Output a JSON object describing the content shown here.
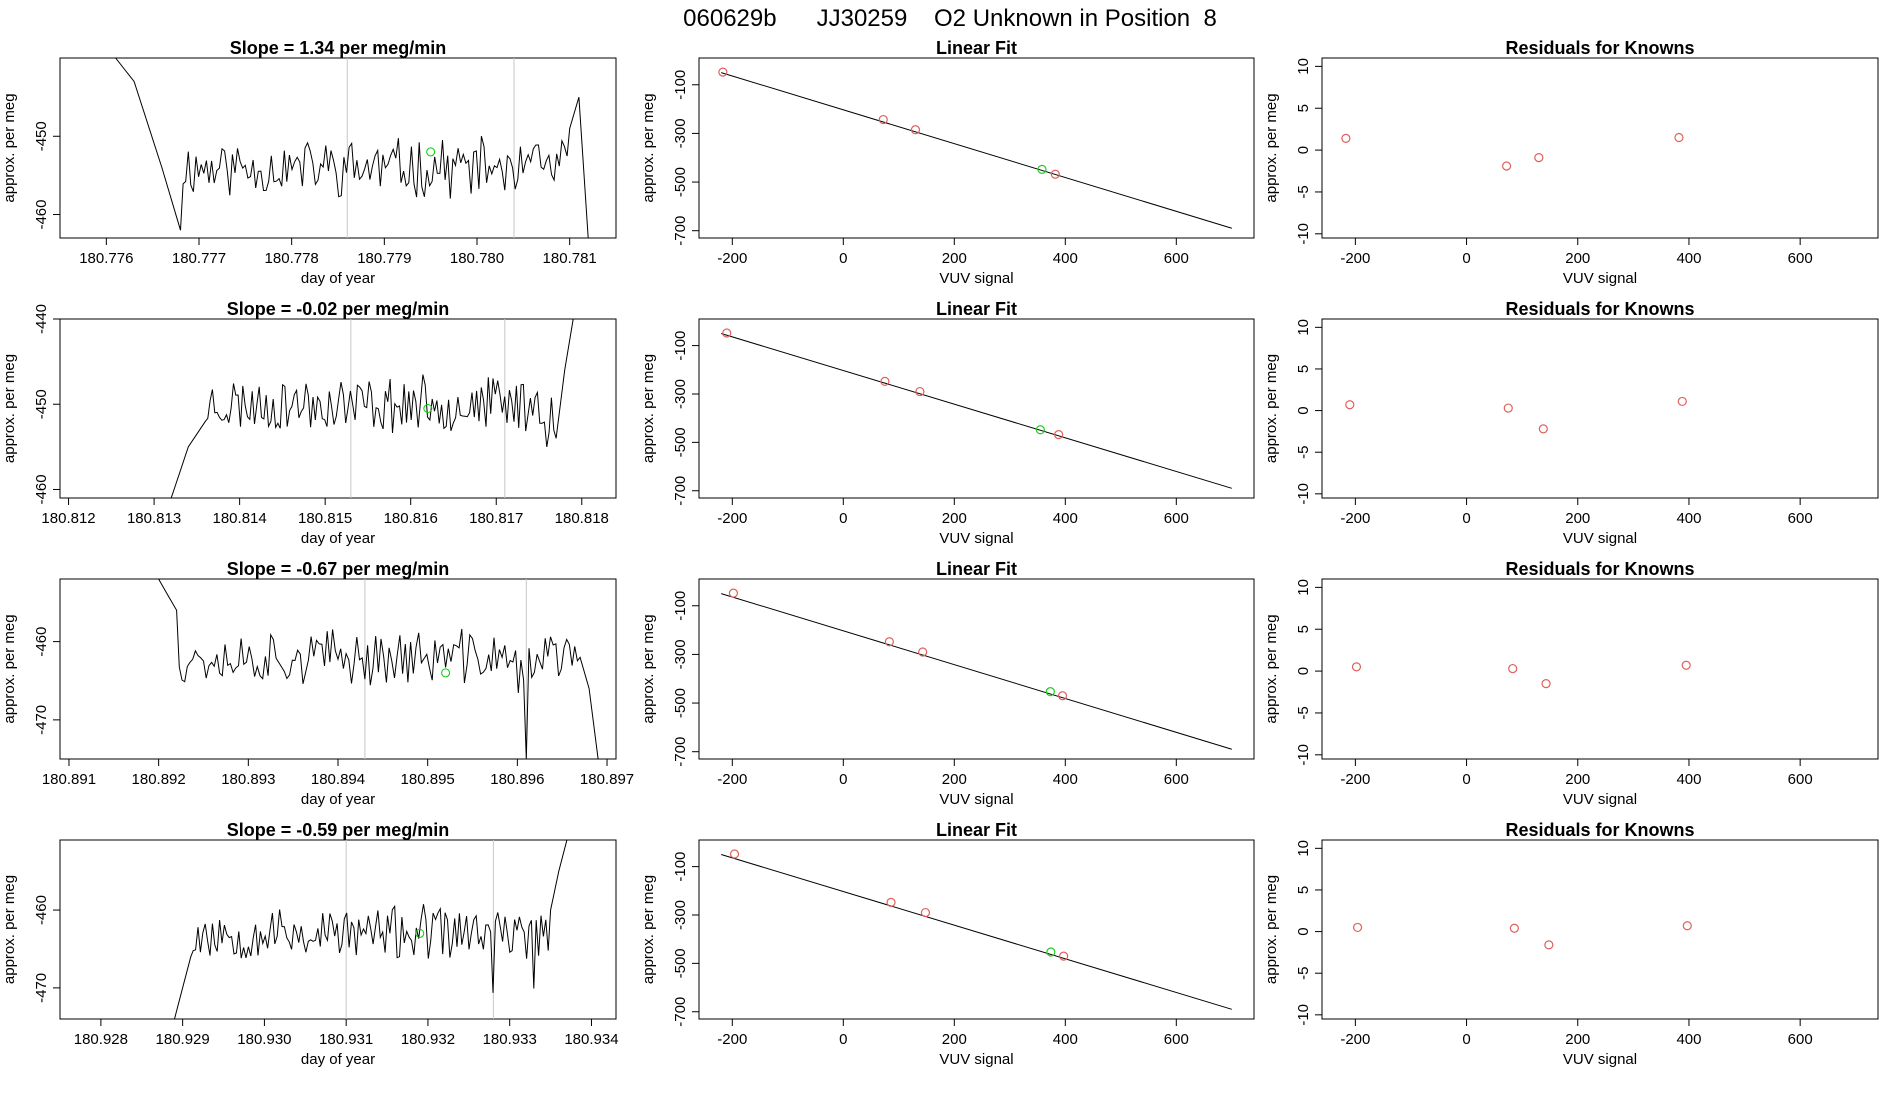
{
  "title": "060629b      JJ30259    O2 Unknown in Position  8",
  "chart_data": [
    {
      "type": "line",
      "row": 1,
      "col": 1,
      "title": "Slope =  1.34  per meg/min",
      "xlabel": "day of year",
      "ylabel": "approx. per meg",
      "xlim": [
        180.7755,
        180.7815
      ],
      "ylim": [
        -463,
        -440
      ],
      "xticks": [
        180.776,
        180.777,
        180.778,
        180.779,
        180.78,
        180.781
      ],
      "xtick_labels": [
        "180.776",
        "180.777",
        "180.778",
        "180.779",
        "180.780",
        "180.781"
      ],
      "yticks": [
        -450,
        -460
      ],
      "ytick_labels": [
        "-450",
        "-460"
      ],
      "vlines": [
        180.7786,
        180.7804
      ],
      "x_start": 180.7761,
      "x_end": 180.7812,
      "base": -454,
      "jitter": 3.2,
      "seed": 11,
      "shape": [
        [
          180.7761,
          -440
        ],
        [
          180.7763,
          -443
        ],
        [
          180.7766,
          -454
        ],
        [
          180.7768,
          -462
        ]
      ],
      "tail": [
        [
          180.781,
          -449
        ],
        [
          180.7811,
          -445
        ],
        [
          180.7812,
          -463
        ]
      ],
      "dips": [
        [
          180.7804,
          -461
        ]
      ],
      "marker": {
        "x": 180.7795,
        "y": -452,
        "color": "#00cc00"
      }
    },
    {
      "type": "scatter",
      "row": 1,
      "col": 2,
      "title": "Linear Fit",
      "xlabel": "VUV signal",
      "ylabel": "approx. per meg",
      "xlim": [
        -260,
        740
      ],
      "ylim": [
        -730,
        10
      ],
      "xticks": [
        -200,
        0,
        200,
        400,
        600
      ],
      "xtick_labels": [
        "-200",
        "0",
        "200",
        "400",
        "600"
      ],
      "yticks": [
        -100,
        -300,
        -500,
        -700
      ],
      "ytick_labels": [
        "-100",
        "-300",
        "-500",
        "-700"
      ],
      "fit_line": [
        [
          -220,
          -50
        ],
        [
          700,
          -690
        ]
      ],
      "points": [
        {
          "x": -217,
          "y": -48,
          "color": "#e0605a"
        },
        {
          "x": 72,
          "y": -243,
          "color": "#e0605a"
        },
        {
          "x": 130,
          "y": -285,
          "color": "#e0605a"
        },
        {
          "x": 358,
          "y": -448,
          "color": "#22cc22"
        },
        {
          "x": 382,
          "y": -468,
          "color": "#e0605a"
        }
      ]
    },
    {
      "type": "scatter",
      "row": 1,
      "col": 3,
      "title": "Residuals for Knowns",
      "xlabel": "VUV signal",
      "ylabel": "approx. per meg",
      "xlim": [
        -260,
        740
      ],
      "ylim": [
        -10.5,
        11
      ],
      "xticks": [
        -200,
        0,
        200,
        400,
        600
      ],
      "xtick_labels": [
        "-200",
        "0",
        "200",
        "400",
        "600"
      ],
      "yticks": [
        10,
        5,
        0,
        -5,
        -10
      ],
      "ytick_labels": [
        "10",
        "5",
        "0",
        "-5",
        "-10"
      ],
      "points": [
        {
          "x": -217,
          "y": 1.4,
          "color": "#e0605a"
        },
        {
          "x": 72,
          "y": -1.9,
          "color": "#e0605a"
        },
        {
          "x": 130,
          "y": -0.9,
          "color": "#e0605a"
        },
        {
          "x": 382,
          "y": 1.5,
          "color": "#e0605a"
        }
      ]
    },
    {
      "type": "line",
      "row": 2,
      "col": 1,
      "title": "Slope =  -0.02  per meg/min",
      "xlabel": "day of year",
      "ylabel": "approx. per meg",
      "xlim": [
        180.8119,
        180.8184
      ],
      "ylim": [
        -461,
        -440
      ],
      "xticks": [
        180.812,
        180.813,
        180.814,
        180.815,
        180.816,
        180.817,
        180.818
      ],
      "xtick_labels": [
        "180.812",
        "180.813",
        "180.814",
        "180.815",
        "180.816",
        "180.817",
        "180.818"
      ],
      "yticks": [
        -440,
        -450,
        -460
      ],
      "ytick_labels": [
        "-440",
        "-450",
        "-460"
      ],
      "vlines": [
        180.8153,
        180.8171
      ],
      "x_start": 180.8132,
      "x_end": 180.8179,
      "base": -450,
      "jitter": 2.8,
      "seed": 23,
      "shape": [
        [
          180.8132,
          -461
        ],
        [
          180.8133,
          -458
        ],
        [
          180.8134,
          -455
        ],
        [
          180.8136,
          -452
        ]
      ],
      "tail": [
        [
          180.8177,
          -454
        ],
        [
          180.8178,
          -446
        ],
        [
          180.8179,
          -440
        ]
      ],
      "dips": [
        [
          180.8176,
          -457
        ]
      ],
      "marker": {
        "x": 180.8162,
        "y": -450.5,
        "color": "#00cc00"
      }
    },
    {
      "type": "scatter",
      "row": 2,
      "col": 2,
      "title": "Linear Fit",
      "xlabel": "VUV signal",
      "ylabel": "approx. per meg",
      "xlim": [
        -260,
        740
      ],
      "ylim": [
        -730,
        10
      ],
      "xticks": [
        -200,
        0,
        200,
        400,
        600
      ],
      "xtick_labels": [
        "-200",
        "0",
        "200",
        "400",
        "600"
      ],
      "yticks": [
        -100,
        -300,
        -500,
        -700
      ],
      "ytick_labels": [
        "-100",
        "-300",
        "-500",
        "-700"
      ],
      "fit_line": [
        [
          -220,
          -50
        ],
        [
          700,
          -690
        ]
      ],
      "points": [
        {
          "x": -210,
          "y": -48,
          "color": "#e0605a"
        },
        {
          "x": 75,
          "y": -248,
          "color": "#e0605a"
        },
        {
          "x": 138,
          "y": -290,
          "color": "#e0605a"
        },
        {
          "x": 355,
          "y": -448,
          "color": "#22cc22"
        },
        {
          "x": 388,
          "y": -468,
          "color": "#e0605a"
        }
      ]
    },
    {
      "type": "scatter",
      "row": 2,
      "col": 3,
      "title": "Residuals for Knowns",
      "xlabel": "VUV signal",
      "ylabel": "approx. per meg",
      "xlim": [
        -260,
        740
      ],
      "ylim": [
        -10.5,
        11
      ],
      "xticks": [
        -200,
        0,
        200,
        400,
        600
      ],
      "xtick_labels": [
        "-200",
        "0",
        "200",
        "400",
        "600"
      ],
      "yticks": [
        10,
        5,
        0,
        -5,
        -10
      ],
      "ytick_labels": [
        "10",
        "5",
        "0",
        "-5",
        "-10"
      ],
      "points": [
        {
          "x": -210,
          "y": 0.7,
          "color": "#e0605a"
        },
        {
          "x": 75,
          "y": 0.3,
          "color": "#e0605a"
        },
        {
          "x": 138,
          "y": -2.2,
          "color": "#e0605a"
        },
        {
          "x": 388,
          "y": 1.1,
          "color": "#e0605a"
        }
      ]
    },
    {
      "type": "line",
      "row": 3,
      "col": 1,
      "title": "Slope =  -0.67  per meg/min",
      "xlabel": "day of year",
      "ylabel": "approx. per meg",
      "xlim": [
        180.8909,
        180.8971
      ],
      "ylim": [
        -475,
        -452
      ],
      "xticks": [
        180.891,
        180.892,
        180.893,
        180.894,
        180.895,
        180.896,
        180.897
      ],
      "xtick_labels": [
        "180.891",
        "180.892",
        "180.893",
        "180.894",
        "180.895",
        "180.896",
        "180.897"
      ],
      "yticks": [
        -460,
        -470
      ],
      "ytick_labels": [
        "-460",
        "-470"
      ],
      "vlines": [
        180.8943,
        180.8961
      ],
      "x_start": 180.892,
      "x_end": 180.8969,
      "base": -462,
      "jitter": 3.0,
      "seed": 37,
      "shape": [
        [
          180.892,
          -452
        ],
        [
          180.8921,
          -454
        ],
        [
          180.8922,
          -456
        ]
      ],
      "tail": [
        [
          180.8967,
          -462
        ],
        [
          180.8968,
          -466
        ],
        [
          180.8969,
          -475
        ]
      ],
      "dips": [
        [
          180.8961,
          -475
        ],
        [
          180.896,
          -470
        ]
      ],
      "marker": {
        "x": 180.8952,
        "y": -464,
        "color": "#00cc00"
      }
    },
    {
      "type": "scatter",
      "row": 3,
      "col": 2,
      "title": "Linear Fit",
      "xlabel": "VUV signal",
      "ylabel": "approx. per meg",
      "xlim": [
        -260,
        740
      ],
      "ylim": [
        -730,
        10
      ],
      "xticks": [
        -200,
        0,
        200,
        400,
        600
      ],
      "xtick_labels": [
        "-200",
        "0",
        "200",
        "400",
        "600"
      ],
      "yticks": [
        -100,
        -300,
        -500,
        -700
      ],
      "ytick_labels": [
        "-100",
        "-300",
        "-500",
        "-700"
      ],
      "fit_line": [
        [
          -220,
          -50
        ],
        [
          700,
          -690
        ]
      ],
      "points": [
        {
          "x": -198,
          "y": -48,
          "color": "#e0605a"
        },
        {
          "x": 83,
          "y": -248,
          "color": "#e0605a"
        },
        {
          "x": 143,
          "y": -290,
          "color": "#e0605a"
        },
        {
          "x": 373,
          "y": -453,
          "color": "#22cc22"
        },
        {
          "x": 395,
          "y": -470,
          "color": "#e0605a"
        }
      ]
    },
    {
      "type": "scatter",
      "row": 3,
      "col": 3,
      "title": "Residuals for Knowns",
      "xlabel": "VUV signal",
      "ylabel": "approx. per meg",
      "xlim": [
        -260,
        740
      ],
      "ylim": [
        -10.5,
        11
      ],
      "xticks": [
        -200,
        0,
        200,
        400,
        600
      ],
      "xtick_labels": [
        "-200",
        "0",
        "200",
        "400",
        "600"
      ],
      "yticks": [
        10,
        5,
        0,
        -5,
        -10
      ],
      "ytick_labels": [
        "10",
        "5",
        "0",
        "-5",
        "-10"
      ],
      "points": [
        {
          "x": -198,
          "y": 0.5,
          "color": "#e0605a"
        },
        {
          "x": 83,
          "y": 0.3,
          "color": "#e0605a"
        },
        {
          "x": 143,
          "y": -1.5,
          "color": "#e0605a"
        },
        {
          "x": 395,
          "y": 0.7,
          "color": "#e0605a"
        }
      ]
    },
    {
      "type": "line",
      "row": 4,
      "col": 1,
      "title": "Slope =  -0.59  per meg/min",
      "xlabel": "day of year",
      "ylabel": "approx. per meg",
      "xlim": [
        180.9275,
        180.9343
      ],
      "ylim": [
        -474,
        -451
      ],
      "xticks": [
        180.928,
        180.929,
        180.93,
        180.931,
        180.932,
        180.933,
        180.934
      ],
      "xtick_labels": [
        "180.928",
        "180.929",
        "180.930",
        "180.931",
        "180.932",
        "180.933",
        "180.934"
      ],
      "yticks": [
        -460,
        -470
      ],
      "ytick_labels": [
        "-460",
        "-470"
      ],
      "vlines": [
        180.931,
        180.9328
      ],
      "x_start": 180.9289,
      "x_end": 180.9337,
      "base": -463,
      "jitter": 3.0,
      "seed": 53,
      "shape": [
        [
          180.9289,
          -474
        ],
        [
          180.929,
          -470
        ],
        [
          180.9291,
          -466
        ]
      ],
      "tail": [
        [
          180.9335,
          -460
        ],
        [
          180.9336,
          -455
        ],
        [
          180.9337,
          -451
        ]
      ],
      "dips": [
        [
          180.9328,
          -471
        ],
        [
          180.9333,
          -471
        ]
      ],
      "marker": {
        "x": 180.9319,
        "y": -463,
        "color": "#00cc00"
      }
    },
    {
      "type": "scatter",
      "row": 4,
      "col": 2,
      "title": "Linear Fit",
      "xlabel": "VUV signal",
      "ylabel": "approx. per meg",
      "xlim": [
        -260,
        740
      ],
      "ylim": [
        -730,
        10
      ],
      "xticks": [
        -200,
        0,
        200,
        400,
        600
      ],
      "xtick_labels": [
        "-200",
        "0",
        "200",
        "400",
        "600"
      ],
      "yticks": [
        -100,
        -300,
        -500,
        -700
      ],
      "ytick_labels": [
        "-100",
        "-300",
        "-500",
        "-700"
      ],
      "fit_line": [
        [
          -220,
          -50
        ],
        [
          700,
          -690
        ]
      ],
      "points": [
        {
          "x": -196,
          "y": -48,
          "color": "#e0605a"
        },
        {
          "x": 86,
          "y": -248,
          "color": "#e0605a"
        },
        {
          "x": 148,
          "y": -290,
          "color": "#e0605a"
        },
        {
          "x": 374,
          "y": -453,
          "color": "#22cc22"
        },
        {
          "x": 397,
          "y": -470,
          "color": "#e0605a"
        }
      ]
    },
    {
      "type": "scatter",
      "row": 4,
      "col": 3,
      "title": "Residuals for Knowns",
      "xlabel": "VUV signal",
      "ylabel": "approx. per meg",
      "xlim": [
        -260,
        740
      ],
      "ylim": [
        -10.5,
        11
      ],
      "xticks": [
        -200,
        0,
        200,
        400,
        600
      ],
      "xtick_labels": [
        "-200",
        "0",
        "200",
        "400",
        "600"
      ],
      "yticks": [
        10,
        5,
        0,
        -5,
        -10
      ],
      "ytick_labels": [
        "10",
        "5",
        "0",
        "-5",
        "-10"
      ],
      "points": [
        {
          "x": -196,
          "y": 0.5,
          "color": "#e0605a"
        },
        {
          "x": 86,
          "y": 0.4,
          "color": "#e0605a"
        },
        {
          "x": 148,
          "y": -1.6,
          "color": "#e0605a"
        },
        {
          "x": 397,
          "y": 0.7,
          "color": "#e0605a"
        }
      ]
    }
  ]
}
